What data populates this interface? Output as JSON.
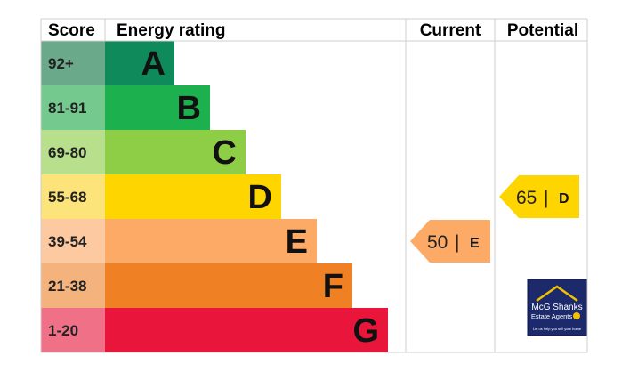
{
  "chart_data": {
    "type": "bar",
    "headers": {
      "score": "Score",
      "rating": "Energy rating",
      "current": "Current",
      "potential": "Potential"
    },
    "bands": [
      {
        "score": "92+",
        "letter": "A",
        "color": "#0f8a5a",
        "score_bg": "#6aa98a"
      },
      {
        "score": "81-91",
        "letter": "B",
        "color": "#1db04f",
        "score_bg": "#74c98e"
      },
      {
        "score": "69-80",
        "letter": "C",
        "color": "#8dce46",
        "score_bg": "#b8e08c"
      },
      {
        "score": "55-68",
        "letter": "D",
        "color": "#ffd500",
        "score_bg": "#fde47a"
      },
      {
        "score": "39-54",
        "letter": "E",
        "color": "#fcaa65",
        "score_bg": "#fdc9a0"
      },
      {
        "score": "21-38",
        "letter": "F",
        "color": "#ef8023",
        "score_bg": "#f4b27c"
      },
      {
        "score": "1-20",
        "letter": "G",
        "color": "#e9153b",
        "score_bg": "#f07088"
      }
    ],
    "current": {
      "value": 50,
      "letter": "E",
      "separator": "|",
      "color": "#fcaa65"
    },
    "potential": {
      "value": 65,
      "letter": "D",
      "separator": "|",
      "color": "#ffd500"
    }
  },
  "logo": {
    "line1": "McG Shanks",
    "line2": "Estate Agents",
    "tagline": "Let us help you sell your home",
    "bg": "#1c2a6b",
    "accent": "#f2c200"
  }
}
